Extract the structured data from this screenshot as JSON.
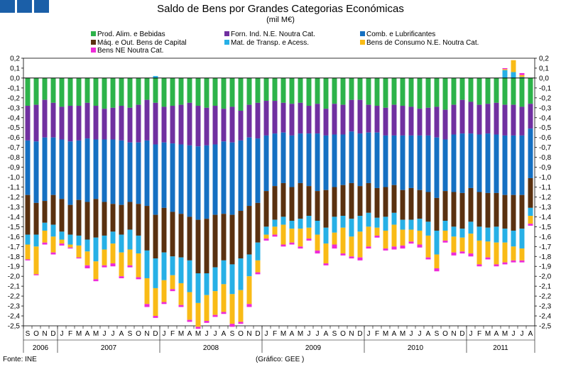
{
  "header": {
    "title": "Saldo de Bens por Grandes Categorias Económicas",
    "subtitle": "(mil M€)"
  },
  "footer": {
    "source": "Fonte: INE",
    "credit": "(Gráfico: GEE )"
  },
  "colors": {
    "food": "#2db34a",
    "industrial": "#7030a0",
    "fuels": "#1570c2",
    "machinery": "#5a3110",
    "transport": "#27b0e6",
    "consumer": "#f9bb16",
    "ne": "#ee2bd8",
    "logo": "#1b5fa8"
  },
  "chart_data": {
    "type": "bar",
    "stacked": true,
    "title": "Saldo de Bens por Grandes Categorias Económicas",
    "subtitle": "(mil M€)",
    "ylim": [
      -2.5,
      0.2
    ],
    "y_ticks": [
      "0,2",
      "0,1",
      "0,0",
      "-0,1",
      "-0,2",
      "-0,3",
      "-0,4",
      "-0,5",
      "-0,6",
      "-0,7",
      "-0,8",
      "-0,9",
      "-1,0",
      "-1,1",
      "-1,2",
      "-1,3",
      "-1,4",
      "-1,5",
      "-1,6",
      "-1,7",
      "-1,8",
      "-1,9",
      "-2,0",
      "-2,1",
      "-2,2",
      "-2,3",
      "-2,4",
      "-2,5"
    ],
    "months": [
      "S",
      "O",
      "N",
      "D",
      "J",
      "F",
      "M",
      "A",
      "M",
      "J",
      "J",
      "A",
      "S",
      "O",
      "N",
      "D",
      "J",
      "F",
      "M",
      "A",
      "M",
      "J",
      "J",
      "A",
      "S",
      "O",
      "N",
      "D",
      "J",
      "F",
      "M",
      "A",
      "M",
      "J",
      "J",
      "A",
      "S",
      "O",
      "N",
      "D",
      "J",
      "F",
      "M",
      "A",
      "M",
      "J",
      "J",
      "A",
      "S",
      "O",
      "N",
      "D",
      "J",
      "F",
      "M",
      "A",
      "M",
      "J",
      "J",
      "A"
    ],
    "years": [
      {
        "label": "2006",
        "months": 4
      },
      {
        "label": "2007",
        "months": 12
      },
      {
        "label": "2008",
        "months": 12
      },
      {
        "label": "2009",
        "months": 12
      },
      {
        "label": "2010",
        "months": 12
      },
      {
        "label": "2011",
        "months": 8
      }
    ],
    "legend": [
      {
        "key": "food",
        "label": "Prod. Alim. e Bebidas"
      },
      {
        "key": "industrial",
        "label": "Forn. Ind. N.E. Noutra Cat."
      },
      {
        "key": "fuels",
        "label": "Comb. e Lubrificantes"
      },
      {
        "key": "machinery",
        "label": "Máq. e Out. Bens de Capital"
      },
      {
        "key": "transport",
        "label": "Mat. de Transp. e Acess."
      },
      {
        "key": "consumer",
        "label": "Bens de Consumo N.E. Noutra Cat."
      },
      {
        "key": "ne",
        "label": "Bens NE Noutra Cat."
      }
    ],
    "series": [
      {
        "name": "Prod. Alim. e Bebidas",
        "key": "food",
        "values": [
          -0.28,
          -0.27,
          -0.22,
          -0.25,
          -0.29,
          -0.28,
          -0.28,
          -0.25,
          -0.28,
          -0.31,
          -0.3,
          -0.28,
          -0.3,
          -0.27,
          -0.22,
          -0.25,
          -0.29,
          -0.28,
          -0.27,
          -0.25,
          -0.28,
          -0.3,
          -0.28,
          -0.31,
          -0.29,
          -0.33,
          -0.27,
          -0.25,
          -0.23,
          -0.23,
          -0.25,
          -0.26,
          -0.25,
          -0.28,
          -0.26,
          -0.31,
          -0.26,
          -0.27,
          -0.22,
          -0.22,
          -0.27,
          -0.28,
          -0.3,
          -0.27,
          -0.28,
          -0.29,
          -0.31,
          -0.3,
          -0.29,
          -0.32,
          -0.27,
          -0.22,
          -0.24,
          -0.27,
          -0.26,
          -0.25,
          -0.27,
          -0.27,
          -0.29,
          -0.26
        ]
      },
      {
        "name": "Forn. Ind. N.E. Noutra Cat.",
        "key": "industrial",
        "values": [
          -0.35,
          -0.37,
          -0.38,
          -0.35,
          -0.33,
          -0.36,
          -0.35,
          -0.36,
          -0.34,
          -0.31,
          -0.32,
          -0.35,
          -0.35,
          -0.38,
          -0.41,
          -0.42,
          -0.36,
          -0.38,
          -0.4,
          -0.43,
          -0.41,
          -0.38,
          -0.39,
          -0.33,
          -0.36,
          -0.3,
          -0.33,
          -0.36,
          -0.35,
          -0.33,
          -0.3,
          -0.32,
          -0.31,
          -0.28,
          -0.3,
          -0.27,
          -0.31,
          -0.3,
          -0.32,
          -0.34,
          -0.28,
          -0.27,
          -0.28,
          -0.31,
          -0.3,
          -0.29,
          -0.27,
          -0.28,
          -0.31,
          -0.3,
          -0.3,
          -0.34,
          -0.32,
          -0.3,
          -0.3,
          -0.32,
          -0.31,
          -0.31,
          -0.29,
          -0.25
        ]
      },
      {
        "name": "Comb. e Lubrificantes",
        "key": "fuels",
        "values": [
          -0.55,
          -0.62,
          -0.64,
          -0.58,
          -0.6,
          -0.64,
          -0.6,
          -0.64,
          -0.6,
          -0.63,
          -0.65,
          -0.65,
          -0.6,
          -0.62,
          -0.66,
          -0.71,
          -0.66,
          -0.69,
          -0.7,
          -0.72,
          -0.74,
          -0.74,
          -0.71,
          -0.73,
          -0.73,
          -0.71,
          -0.69,
          -0.65,
          -0.56,
          -0.53,
          -0.51,
          -0.52,
          -0.5,
          -0.53,
          -0.58,
          -0.55,
          -0.53,
          -0.51,
          -0.52,
          -0.53,
          -0.51,
          -0.56,
          -0.52,
          -0.5,
          -0.55,
          -0.53,
          -0.55,
          -0.57,
          -0.61,
          -0.52,
          -0.58,
          -0.6,
          -0.55,
          -0.58,
          -0.6,
          -0.59,
          -0.6,
          -0.6,
          -0.6,
          -0.5
        ]
      },
      {
        "name": "Máq. e Out. Bens de Capital",
        "key": "machinery",
        "values": [
          -0.4,
          -0.32,
          -0.22,
          -0.3,
          -0.33,
          -0.3,
          -0.36,
          -0.38,
          -0.39,
          -0.34,
          -0.28,
          -0.3,
          -0.28,
          -0.32,
          -0.45,
          -0.44,
          -0.45,
          -0.45,
          -0.44,
          -0.44,
          -0.54,
          -0.55,
          -0.53,
          -0.47,
          -0.5,
          -0.48,
          -0.49,
          -0.4,
          -0.36,
          -0.34,
          -0.34,
          -0.34,
          -0.36,
          -0.3,
          -0.3,
          -0.38,
          -0.3,
          -0.31,
          -0.36,
          -0.3,
          -0.3,
          -0.3,
          -0.3,
          -0.28,
          -0.3,
          -0.32,
          -0.29,
          -0.3,
          -0.33,
          -0.3,
          -0.35,
          -0.36,
          -0.34,
          -0.35,
          -0.35,
          -0.34,
          -0.34,
          -0.36,
          -0.34,
          -0.3
        ]
      },
      {
        "name": "Mat. de Transp. e Acess.",
        "key": "transport",
        "values": [
          -0.1,
          -0.12,
          -0.08,
          -0.12,
          -0.08,
          -0.1,
          -0.1,
          -0.12,
          -0.24,
          -0.14,
          -0.12,
          -0.18,
          -0.2,
          -0.18,
          -0.28,
          -0.3,
          -0.28,
          -0.19,
          -0.26,
          -0.32,
          -0.3,
          -0.22,
          -0.24,
          -0.24,
          -0.3,
          -0.32,
          -0.22,
          -0.18,
          -0.08,
          -0.07,
          -0.08,
          -0.08,
          -0.1,
          -0.12,
          -0.14,
          -0.16,
          -0.16,
          -0.12,
          -0.18,
          -0.16,
          -0.14,
          -0.1,
          -0.14,
          -0.12,
          -0.1,
          -0.1,
          -0.12,
          -0.14,
          -0.24,
          -0.1,
          -0.1,
          -0.09,
          -0.12,
          -0.14,
          -0.14,
          -0.16,
          -0.14,
          -0.16,
          -0.2,
          -0.08
        ]
      },
      {
        "name": "Bens de Consumo N.E. Noutra Cat.",
        "key": "consumer",
        "values": [
          -0.15,
          -0.28,
          -0.12,
          -0.16,
          -0.04,
          -0.03,
          -0.12,
          -0.14,
          -0.18,
          -0.16,
          -0.2,
          -0.24,
          -0.16,
          -0.24,
          -0.26,
          -0.28,
          -0.22,
          -0.14,
          -0.22,
          -0.28,
          -0.24,
          -0.26,
          -0.24,
          -0.28,
          -0.3,
          -0.32,
          -0.28,
          -0.12,
          -0.04,
          -0.08,
          -0.2,
          -0.14,
          -0.18,
          -0.11,
          -0.16,
          -0.2,
          -0.12,
          -0.26,
          -0.2,
          -0.26,
          -0.2,
          -0.08,
          -0.18,
          -0.22,
          -0.16,
          -0.12,
          -0.14,
          -0.22,
          -0.14,
          -0.1,
          -0.16,
          -0.14,
          -0.2,
          -0.24,
          -0.16,
          -0.22,
          -0.2,
          -0.14,
          -0.12,
          -0.08
        ]
      },
      {
        "name": "Bens NE Noutra Cat.",
        "key": "ne",
        "values": [
          -0.01,
          -0.01,
          -0.02,
          -0.02,
          -0.02,
          -0.01,
          -0.01,
          -0.03,
          -0.02,
          -0.02,
          -0.03,
          -0.02,
          -0.02,
          -0.02,
          -0.03,
          -0.02,
          -0.02,
          -0.02,
          -0.02,
          -0.02,
          -0.02,
          -0.02,
          -0.02,
          -0.02,
          -0.03,
          -0.02,
          -0.03,
          -0.02,
          -0.02,
          -0.02,
          -0.02,
          -0.02,
          -0.02,
          -0.02,
          -0.03,
          -0.02,
          -0.04,
          -0.02,
          -0.02,
          -0.03,
          -0.02,
          -0.02,
          -0.02,
          -0.03,
          -0.03,
          -0.02,
          -0.03,
          -0.02,
          -0.03,
          -0.02,
          -0.03,
          -0.02,
          -0.03,
          -0.02,
          -0.02,
          -0.02,
          -0.02,
          -0.02,
          -0.02,
          -0.02
        ]
      }
    ],
    "positive_tops": [
      {
        "month_index": 15,
        "values": [
          0.02
        ]
      },
      {
        "month_index": 56,
        "values": [
          0.08,
          0.01,
          0.01
        ]
      },
      {
        "month_index": 57,
        "values": [
          0.06,
          0.12
        ]
      },
      {
        "month_index": 58,
        "values": [
          0.01,
          0.02,
          0.02
        ]
      }
    ]
  }
}
